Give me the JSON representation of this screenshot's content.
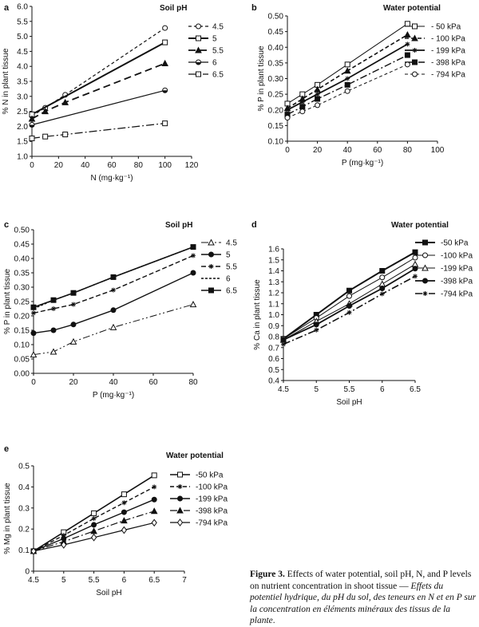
{
  "chart_data": [
    {
      "panel": "a",
      "type": "line",
      "ylabel": "% N in plant tissue",
      "xlabel": "N (mg·kg⁻¹)",
      "xlim": [
        0,
        120
      ],
      "ylim": [
        1.0,
        6.0
      ],
      "xticks": [
        0,
        20,
        40,
        60,
        80,
        100,
        120
      ],
      "yticks": [
        1.0,
        1.5,
        2.0,
        2.5,
        3.0,
        3.5,
        4.0,
        4.5,
        5.0,
        5.5,
        6.0
      ],
      "legend_title": "Soil pH",
      "series": [
        {
          "name": "4.5",
          "x": [
            0,
            10,
            25,
            100
          ],
          "y": [
            2.35,
            2.62,
            3.05,
            5.28
          ],
          "marker": "open-circle",
          "dash": "4,3",
          "width": 1.2
        },
        {
          "name": "5",
          "x": [
            0,
            100
          ],
          "y": [
            2.4,
            4.8
          ],
          "marker": "open-square",
          "dash": "",
          "width": 2
        },
        {
          "name": "5.5",
          "x": [
            0,
            10,
            25,
            100
          ],
          "y": [
            2.25,
            2.5,
            2.8,
            4.1
          ],
          "marker": "filled-triangle",
          "dash": "9,5",
          "width": 1.8
        },
        {
          "name": "6",
          "x": [
            0,
            100
          ],
          "y": [
            2.05,
            3.2
          ],
          "marker": "half-circle",
          "dash": "",
          "width": 1.2
        },
        {
          "name": "6.5",
          "x": [
            0,
            10,
            25,
            100
          ],
          "y": [
            1.6,
            1.66,
            1.73,
            2.1
          ],
          "marker": "open-square",
          "dash": "10,3,2,3",
          "width": 1.2
        }
      ]
    },
    {
      "panel": "b",
      "type": "line",
      "ylabel": "% P in plant tissue",
      "xlabel": "P (mg·kg⁻¹)",
      "xlim": [
        0,
        100
      ],
      "ylim": [
        0.1,
        0.5
      ],
      "xticks": [
        0,
        20,
        40,
        60,
        80,
        100
      ],
      "yticks": [
        0.1,
        0.15,
        0.2,
        0.25,
        0.3,
        0.35,
        0.4,
        0.45,
        0.5
      ],
      "legend_title": "Water potential",
      "series": [
        {
          "name": "- 50 kPa",
          "x": [
            0,
            10,
            20,
            40,
            80
          ],
          "y": [
            0.22,
            0.25,
            0.28,
            0.345,
            0.475
          ],
          "marker": "open-square",
          "dash": "",
          "width": 1
        },
        {
          "name": "- 100 kPa",
          "x": [
            0,
            10,
            20,
            40,
            80
          ],
          "y": [
            0.205,
            0.235,
            0.265,
            0.325,
            0.44
          ],
          "marker": "filled-triangle",
          "dash": "5,3",
          "width": 1.6
        },
        {
          "name": "- 199 kPa",
          "x": [
            0,
            10,
            20,
            40,
            80
          ],
          "y": [
            0.2,
            0.225,
            0.25,
            0.3,
            0.41
          ],
          "marker": "star",
          "dash": "",
          "width": 1.8
        },
        {
          "name": "- 398 kPa",
          "x": [
            0,
            10,
            20,
            40,
            80
          ],
          "y": [
            0.185,
            0.21,
            0.235,
            0.28,
            0.375
          ],
          "marker": "filled-square",
          "dash": "9,3,2,3",
          "width": 1.4
        },
        {
          "name": "- 794 kPa",
          "x": [
            0,
            10,
            20,
            40,
            80
          ],
          "y": [
            0.175,
            0.195,
            0.215,
            0.26,
            0.345
          ],
          "marker": "open-circle",
          "dash": "4,3",
          "width": 1
        }
      ]
    },
    {
      "panel": "c",
      "type": "line",
      "ylabel": "% P in plant tissue",
      "xlabel": "P (mg·kg⁻¹)",
      "xlim": [
        0,
        80
      ],
      "ylim": [
        0,
        0.5
      ],
      "xticks": [
        0,
        20,
        40,
        60,
        80
      ],
      "yticks": [
        0.0,
        0.05,
        0.1,
        0.15,
        0.2,
        0.25,
        0.3,
        0.35,
        0.4,
        0.45,
        0.5
      ],
      "legend_title": "Soil pH",
      "series": [
        {
          "name": "4.5",
          "x": [
            0,
            10,
            20,
            40,
            80
          ],
          "y": [
            0.065,
            0.075,
            0.11,
            0.16,
            0.24
          ],
          "marker": "open-triangle",
          "dash": "9,3,2,3,2,3",
          "width": 1
        },
        {
          "name": "5",
          "x": [
            0,
            10,
            20,
            40,
            80
          ],
          "y": [
            0.14,
            0.15,
            0.17,
            0.22,
            0.35
          ],
          "marker": "filled-circle",
          "dash": "",
          "width": 1.4
        },
        {
          "name": "5.5",
          "x": [
            0,
            10,
            20,
            40,
            80
          ],
          "y": [
            0.21,
            0.225,
            0.24,
            0.29,
            0.41
          ],
          "marker": "star",
          "dash": "6,3",
          "width": 1.4
        },
        {
          "name": "6",
          "x": [
            0,
            10,
            20,
            40,
            80
          ],
          "y": [
            0.225,
            0.255,
            0.28,
            0.335,
            0.44
          ],
          "marker": "none",
          "dash": "3,2",
          "width": 1.4
        },
        {
          "name": "6.5",
          "x": [
            0,
            10,
            20,
            40,
            80
          ],
          "y": [
            0.23,
            0.255,
            0.28,
            0.335,
            0.44
          ],
          "marker": "filled-square",
          "dash": "",
          "width": 1.6
        }
      ]
    },
    {
      "panel": "d",
      "type": "line",
      "ylabel": "% Ca in plant tissue",
      "xlabel": "Soil pH",
      "xlim": [
        4.5,
        6.5
      ],
      "ylim": [
        0.4,
        1.6
      ],
      "xticks": [
        4.5,
        5,
        5.5,
        6,
        6.5
      ],
      "yticks": [
        0.4,
        0.5,
        0.6,
        0.7,
        0.8,
        0.9,
        1.0,
        1.1,
        1.2,
        1.3,
        1.4,
        1.5,
        1.6
      ],
      "legend_title": "Water potential",
      "series": [
        {
          "name": "-50 kPa",
          "x": [
            4.5,
            5,
            5.5,
            6,
            6.5
          ],
          "y": [
            0.78,
            1.0,
            1.22,
            1.4,
            1.57
          ],
          "marker": "filled-square",
          "dash": "",
          "width": 2
        },
        {
          "name": "-100 kPa",
          "x": [
            4.5,
            5,
            5.5,
            6,
            6.5
          ],
          "y": [
            0.78,
            0.97,
            1.17,
            1.34,
            1.52
          ],
          "marker": "open-circle",
          "dash": "",
          "width": 1
        },
        {
          "name": "-199 kPa",
          "x": [
            4.5,
            5,
            5.5,
            6,
            6.5
          ],
          "y": [
            0.77,
            0.94,
            1.1,
            1.28,
            1.46
          ],
          "marker": "open-triangle",
          "dash": "",
          "width": 1
        },
        {
          "name": "-398 kPa",
          "x": [
            4.5,
            5,
            5.5,
            6,
            6.5
          ],
          "y": [
            0.77,
            0.91,
            1.08,
            1.24,
            1.42
          ],
          "marker": "filled-circle",
          "dash": "",
          "width": 1.8
        },
        {
          "name": "-794 kPa",
          "x": [
            4.5,
            5,
            5.5,
            6,
            6.5
          ],
          "y": [
            0.73,
            0.86,
            1.02,
            1.19,
            1.35
          ],
          "marker": "star",
          "dash": "9,3,2,3",
          "width": 1.6
        }
      ]
    },
    {
      "panel": "e",
      "type": "line",
      "ylabel": "% Mg in plant tissue",
      "xlabel": "Soil pH",
      "xlim": [
        4.5,
        7
      ],
      "ylim": [
        0,
        0.5
      ],
      "xticks": [
        4.5,
        5,
        5.5,
        6,
        6.5,
        7
      ],
      "yticks": [
        0,
        0.1,
        0.2,
        0.3,
        0.4,
        0.5
      ],
      "legend_title": "Water potential",
      "series": [
        {
          "name": "-50 kPa",
          "x": [
            4.5,
            5,
            5.5,
            6,
            6.5
          ],
          "y": [
            0.095,
            0.185,
            0.275,
            0.365,
            0.455
          ],
          "marker": "open-square",
          "dash": "",
          "width": 1.6
        },
        {
          "name": "-100 kPa",
          "x": [
            4.5,
            5,
            5.5,
            6,
            6.5
          ],
          "y": [
            0.095,
            0.17,
            0.25,
            0.325,
            0.4
          ],
          "marker": "star",
          "dash": "5,3",
          "width": 1.4
        },
        {
          "name": "-199 kPa",
          "x": [
            4.5,
            5,
            5.5,
            6,
            6.5
          ],
          "y": [
            0.095,
            0.155,
            0.22,
            0.28,
            0.34
          ],
          "marker": "filled-circle",
          "dash": "",
          "width": 1.4
        },
        {
          "name": "-398 kPa",
          "x": [
            4.5,
            5,
            5.5,
            6,
            6.5
          ],
          "y": [
            0.095,
            0.14,
            0.19,
            0.24,
            0.285
          ],
          "marker": "filled-triangle",
          "dash": "9,3,2,3",
          "width": 1.2
        },
        {
          "name": "-794 kPa",
          "x": [
            4.5,
            5,
            5.5,
            6,
            6.5
          ],
          "y": [
            0.095,
            0.125,
            0.16,
            0.195,
            0.23
          ],
          "marker": "open-diamond",
          "dash": "",
          "width": 1.2
        }
      ]
    }
  ],
  "caption": {
    "label": "Figure 3.",
    "text": " Effects of water potential, soil pH, N, and P levels on nutrient concentration in shoot tissue — ",
    "french": "Effets du potentiel hydrique, du pH du sol, des teneurs en N et en P sur la concentration en éléments minéraux des tissus de la plante",
    "end": "."
  }
}
